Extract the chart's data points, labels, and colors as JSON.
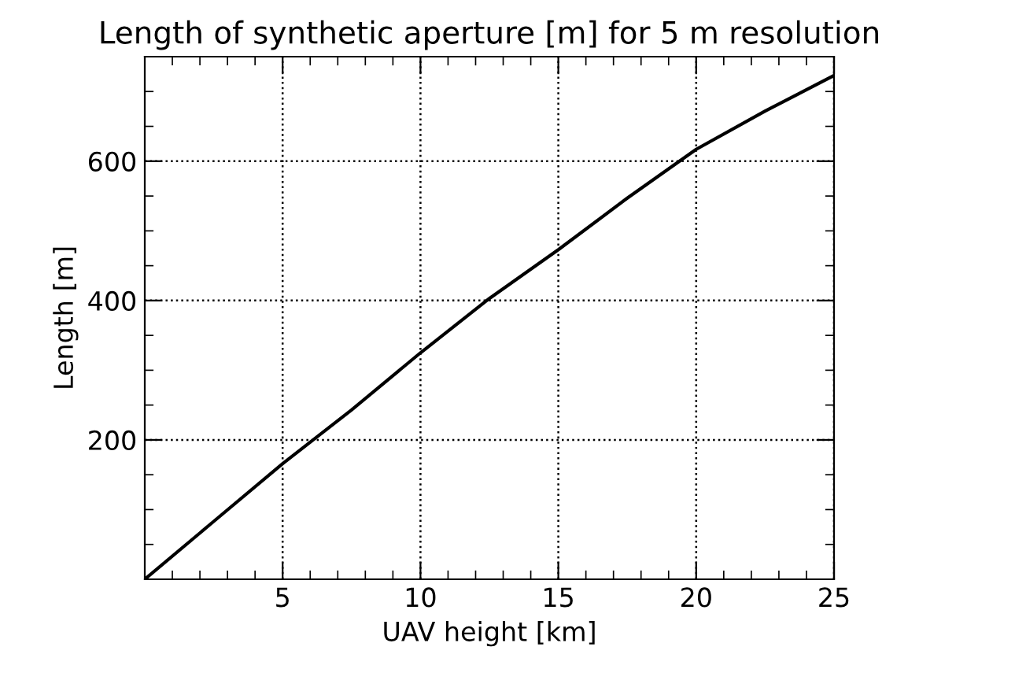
{
  "chart_data": {
    "type": "line",
    "title": "Length of synthetic aperture [m] for 5 m resolution",
    "xlabel": "UAV height [km]",
    "ylabel": "Length [m]",
    "x": [
      0,
      2.5,
      5,
      7.5,
      10,
      12.5,
      15,
      17.5,
      20,
      22.5,
      25
    ],
    "series": [
      {
        "color": "#000000",
        "values": [
          0,
          83,
          166,
          243,
          325,
          403,
          473,
          547,
          617,
          672,
          723
        ]
      }
    ],
    "xlim": [
      0,
      25
    ],
    "ylim": [
      0,
      750
    ],
    "xticks": [
      5,
      10,
      15,
      20,
      25
    ],
    "yticks": [
      200,
      400,
      600
    ],
    "grid": true,
    "legend": false,
    "marker": "none",
    "line_style": "solid"
  }
}
